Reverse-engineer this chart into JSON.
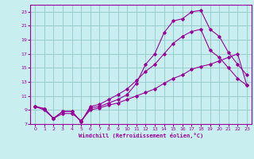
{
  "xlabel": "Windchill (Refroidissement éolien,°C)",
  "bg_color": "#c8eef0",
  "line_color": "#990099",
  "grid_color": "#99cccc",
  "xlim": [
    -0.5,
    23.5
  ],
  "ylim": [
    7,
    24
  ],
  "yticks": [
    7,
    9,
    11,
    13,
    15,
    17,
    19,
    21,
    23
  ],
  "xticks": [
    0,
    1,
    2,
    3,
    4,
    5,
    6,
    7,
    8,
    9,
    10,
    11,
    12,
    13,
    14,
    15,
    16,
    17,
    18,
    19,
    20,
    21,
    22,
    23
  ],
  "curves": [
    {
      "x": [
        0,
        1,
        2,
        3,
        4,
        5,
        6,
        7,
        8,
        9,
        10,
        11,
        12,
        13,
        14,
        15,
        16,
        17,
        18,
        19,
        20,
        21,
        22,
        23
      ],
      "y": [
        9.5,
        9.2,
        7.8,
        8.8,
        8.8,
        7.3,
        9.3,
        9.5,
        10.0,
        10.5,
        11.2,
        12.8,
        15.5,
        17.0,
        20.0,
        21.7,
        22.0,
        23.0,
        23.2,
        20.5,
        19.5,
        17.2,
        15.5,
        14.0
      ]
    },
    {
      "x": [
        0,
        1,
        2,
        3,
        4,
        5,
        6,
        7,
        8,
        9,
        10,
        11,
        12,
        13,
        14,
        15,
        16,
        17,
        18,
        19,
        20,
        21,
        22,
        23
      ],
      "y": [
        9.5,
        9.2,
        7.8,
        8.8,
        8.8,
        7.3,
        9.5,
        9.8,
        10.5,
        11.2,
        12.0,
        13.2,
        14.5,
        15.5,
        17.0,
        18.5,
        19.5,
        20.2,
        20.5,
        17.5,
        16.5,
        15.0,
        13.5,
        12.5
      ]
    },
    {
      "x": [
        0,
        1,
        2,
        3,
        4,
        5,
        6,
        7,
        8,
        9,
        10,
        11,
        12,
        13,
        14,
        15,
        16,
        17,
        18,
        19,
        20,
        21,
        22,
        23
      ],
      "y": [
        9.5,
        9.0,
        7.8,
        8.5,
        8.5,
        7.5,
        9.0,
        9.3,
        9.7,
        10.0,
        10.5,
        11.0,
        11.5,
        12.0,
        12.8,
        13.5,
        14.0,
        14.8,
        15.2,
        15.5,
        16.0,
        16.5,
        17.0,
        12.5
      ]
    }
  ]
}
